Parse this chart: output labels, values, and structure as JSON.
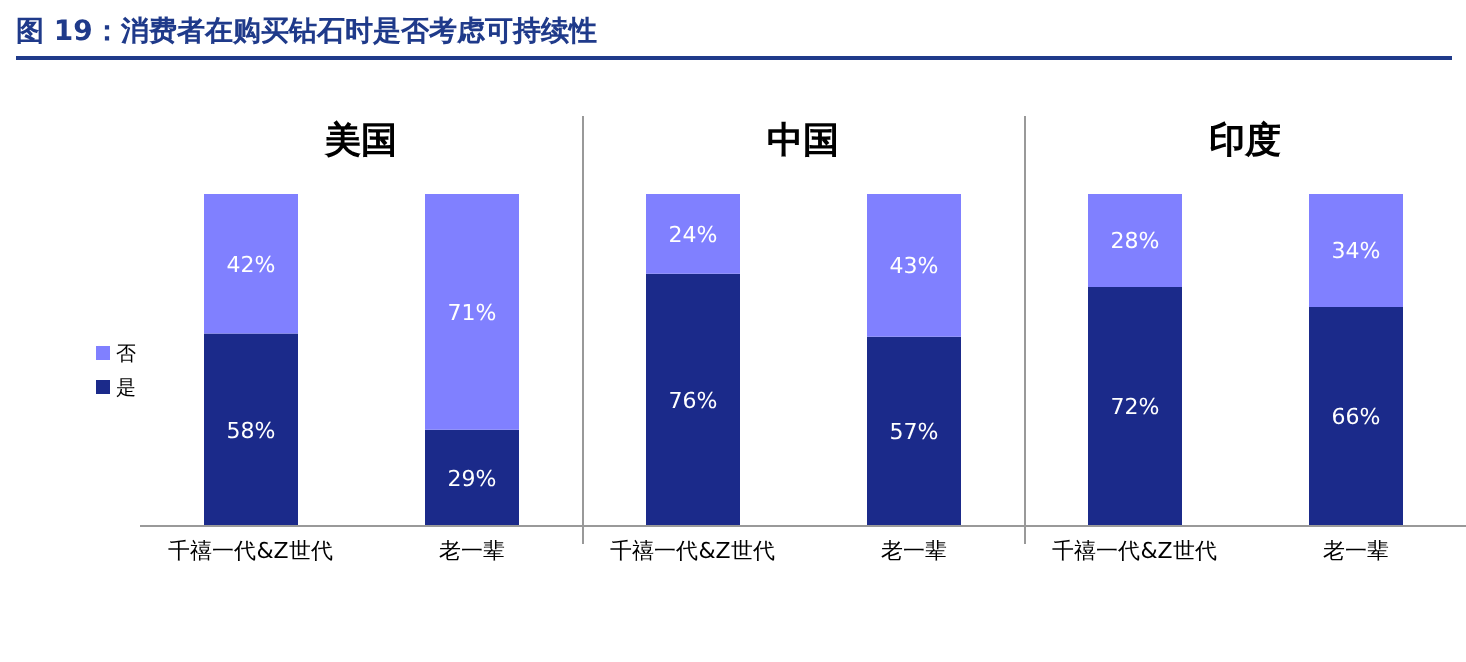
{
  "chart_data": [
    {
      "type": "other",
      "title": "图 19：消费者在购买钻石时是否考虑可持续性"
    },
    {
      "type": "bar",
      "title": "美国",
      "stacked": true,
      "legend": "left",
      "categories": [
        "千禧一代&Z世代",
        "老一辈"
      ],
      "series": [
        {
          "name": "是",
          "color": "#1b2a8a",
          "values": [
            58,
            29
          ],
          "value_labels": [
            "58%",
            "29%"
          ]
        },
        {
          "name": "否",
          "color": "#8080ff",
          "values": [
            42,
            71
          ],
          "value_labels": [
            "42%",
            "71%"
          ]
        }
      ]
    },
    {
      "type": "bar",
      "title": "中国",
      "stacked": true,
      "categories": [
        "千禧一代&Z世代",
        "老一辈"
      ],
      "series": [
        {
          "color": "#1b2a8a",
          "values": [
            76,
            57
          ],
          "value_labels": [
            "76%",
            "57%"
          ]
        },
        {
          "color": "#8080ff",
          "values": [
            24,
            43
          ],
          "value_labels": [
            "24%",
            "43%"
          ]
        }
      ]
    },
    {
      "type": "bar",
      "title": "印度",
      "stacked": true,
      "categories": [
        "千禧一代&Z世代",
        "老一辈"
      ],
      "series": [
        {
          "color": "#1b2a8a",
          "values": [
            72,
            66
          ],
          "value_labels": [
            "72%",
            "66%"
          ]
        },
        {
          "color": "#8080ff",
          "values": [
            28,
            34
          ],
          "value_labels": [
            "28%",
            "34%"
          ]
        }
      ]
    }
  ]
}
